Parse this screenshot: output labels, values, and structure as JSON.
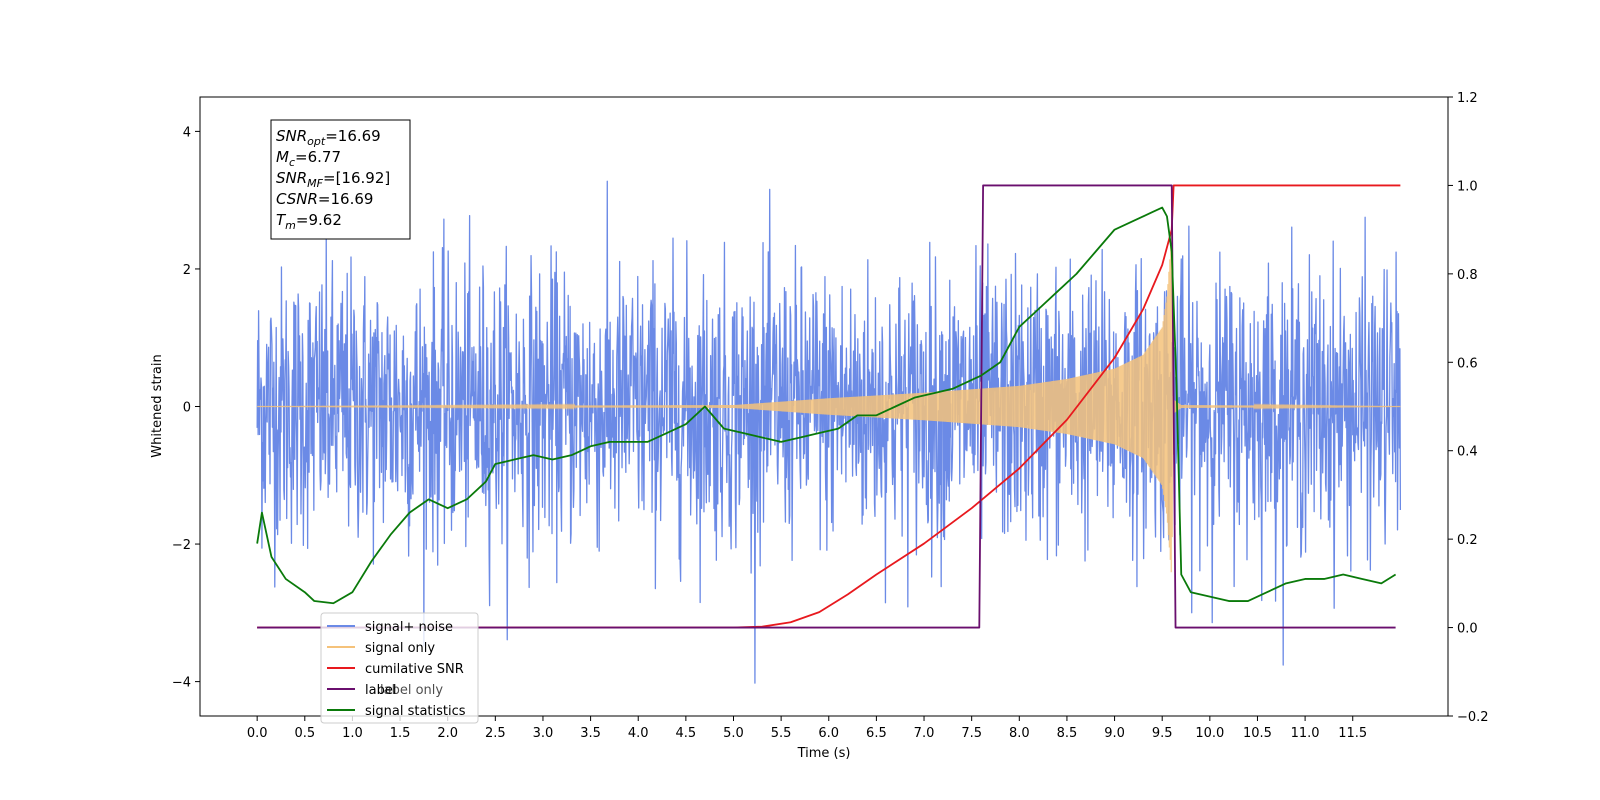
{
  "chart_data": {
    "type": "line",
    "xlabel": "Time (s)",
    "ylabel_left": "Whitened strain",
    "ylabel_right": "",
    "xlim": [
      -0.6,
      12.5
    ],
    "ylim_left": [
      -4.5,
      4.5
    ],
    "ylim_right": [
      -0.2,
      1.2
    ],
    "x_ticks": [
      0.0,
      0.5,
      1.0,
      1.5,
      2.0,
      2.5,
      3.0,
      3.5,
      4.0,
      4.5,
      5.0,
      5.5,
      6.0,
      6.5,
      7.0,
      7.5,
      8.0,
      8.5,
      9.0,
      9.5,
      10.0,
      10.5,
      11.0,
      11.5
    ],
    "x_tick_labels": [
      "0.0",
      "0.5",
      "1.0",
      "1.5",
      "2.0",
      "2.5",
      "3.0",
      "3.5",
      "4.0",
      "4.5",
      "5.0",
      "5.5",
      "6.0",
      "6.5",
      "7.0",
      "7.5",
      "8.0",
      "8.5",
      "9.0",
      "9.5",
      "10.0",
      "10.5",
      "11.0",
      "11.5"
    ],
    "y_ticks_left": [
      -4,
      -2,
      0,
      2,
      4
    ],
    "y_tick_labels_left": [
      "−4",
      "−2",
      "0",
      "2",
      "4"
    ],
    "y_ticks_right": [
      -0.2,
      0.0,
      0.2,
      0.4,
      0.6,
      0.8,
      1.0,
      1.2
    ],
    "y_tick_labels_right": [
      "−0.2",
      "0.0",
      "0.2",
      "0.4",
      "0.6",
      "0.8",
      "1.0",
      "1.2"
    ],
    "grid": false,
    "legend_position": "lower-left",
    "legend": [
      {
        "label": "signal+ noise",
        "color": "#6b8ae6"
      },
      {
        "label": "signal only",
        "color": "#f5c27a"
      },
      {
        "label": "cumilative SNR",
        "color": "#e8191e"
      },
      {
        "label": "label",
        "color": "#6a0f6e"
      },
      {
        "label": "signal statistics",
        "color": "#0a7a0a"
      }
    ],
    "legend_hidden_text": [
      "label only"
    ],
    "annotation": {
      "lines": [
        {
          "base": "SNR",
          "sub": "opt",
          "rest": "=16.69"
        },
        {
          "base": "M",
          "sub": "c",
          "rest": "=6.77"
        },
        {
          "base": "SNR",
          "sub": "MF",
          "rest": "=[16.92]"
        },
        {
          "base": "CSNR",
          "sub": "",
          "rest": "=16.69"
        },
        {
          "base": "T",
          "sub": "m",
          "rest": "=9.62"
        }
      ]
    },
    "series": [
      {
        "name": "signal+ noise",
        "axis": "left",
        "style": "noise",
        "color": "#6b8ae6",
        "x_range": [
          0.0,
          12.0
        ],
        "envelope_sigma": 1.0,
        "observed_range": [
          -4.1,
          4.1
        ]
      },
      {
        "name": "signal only",
        "axis": "left",
        "style": "chirp",
        "color": "#f5c27a",
        "x_range": [
          0.0,
          12.0
        ],
        "envelope": {
          "x": [
            0.0,
            5.0,
            6.0,
            7.0,
            8.0,
            8.5,
            9.0,
            9.3,
            9.5,
            9.55,
            9.6,
            9.62,
            9.7,
            12.0
          ],
          "y": [
            0.0,
            0.02,
            0.12,
            0.2,
            0.3,
            0.4,
            0.55,
            0.75,
            1.15,
            1.6,
            2.5,
            0.1,
            0.02,
            0.0
          ]
        }
      },
      {
        "name": "cumilative SNR",
        "axis": "right",
        "color": "#e8191e",
        "x": [
          0.0,
          5.0,
          5.3,
          5.6,
          5.9,
          6.2,
          6.5,
          7.0,
          7.5,
          8.0,
          8.5,
          9.0,
          9.3,
          9.5,
          9.6,
          9.62,
          9.65,
          12.0
        ],
        "y": [
          0.0,
          0.0,
          0.002,
          0.012,
          0.035,
          0.075,
          0.12,
          0.19,
          0.27,
          0.36,
          0.47,
          0.61,
          0.72,
          0.82,
          0.9,
          1.0,
          1.0,
          1.0
        ]
      },
      {
        "name": "label",
        "axis": "right",
        "color": "#6a0f6e",
        "x": [
          0.0,
          7.58,
          7.62,
          9.6,
          9.64,
          11.95
        ],
        "y": [
          0.0,
          0.0,
          1.0,
          1.0,
          0.0,
          0.0
        ]
      },
      {
        "name": "signal statistics",
        "axis": "right",
        "color": "#0a7a0a",
        "x": [
          0.0,
          0.05,
          0.15,
          0.3,
          0.5,
          0.6,
          0.8,
          1.0,
          1.2,
          1.4,
          1.6,
          1.8,
          2.0,
          2.2,
          2.4,
          2.5,
          2.7,
          2.9,
          3.1,
          3.3,
          3.5,
          3.7,
          3.9,
          4.1,
          4.3,
          4.5,
          4.7,
          4.9,
          5.1,
          5.3,
          5.5,
          5.7,
          5.9,
          6.1,
          6.3,
          6.5,
          6.7,
          6.9,
          7.1,
          7.3,
          7.5,
          7.6,
          7.8,
          8.0,
          8.2,
          8.4,
          8.6,
          8.8,
          9.0,
          9.2,
          9.4,
          9.5,
          9.55,
          9.6,
          9.65,
          9.7,
          9.8,
          10.0,
          10.2,
          10.4,
          10.6,
          10.8,
          11.0,
          11.2,
          11.4,
          11.6,
          11.8,
          11.95
        ],
        "y": [
          0.19,
          0.26,
          0.16,
          0.11,
          0.08,
          0.06,
          0.055,
          0.08,
          0.15,
          0.21,
          0.26,
          0.29,
          0.27,
          0.29,
          0.33,
          0.37,
          0.38,
          0.39,
          0.38,
          0.39,
          0.41,
          0.42,
          0.42,
          0.42,
          0.44,
          0.46,
          0.5,
          0.45,
          0.44,
          0.43,
          0.42,
          0.43,
          0.44,
          0.45,
          0.48,
          0.48,
          0.5,
          0.52,
          0.53,
          0.54,
          0.56,
          0.57,
          0.6,
          0.68,
          0.72,
          0.76,
          0.8,
          0.85,
          0.9,
          0.92,
          0.94,
          0.95,
          0.93,
          0.85,
          0.55,
          0.12,
          0.08,
          0.07,
          0.06,
          0.06,
          0.08,
          0.1,
          0.11,
          0.11,
          0.12,
          0.11,
          0.1,
          0.12
        ]
      }
    ]
  }
}
